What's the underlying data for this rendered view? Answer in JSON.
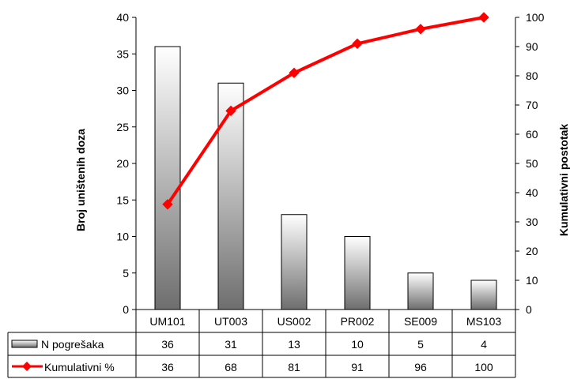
{
  "chart_data": {
    "type": "bar",
    "categories": [
      "UM101",
      "UT003",
      "US002",
      "PR002",
      "SE009",
      "MS103"
    ],
    "series": [
      {
        "name": "N pogrešaka",
        "type": "bar",
        "axis": "left",
        "values": [
          36,
          31,
          13,
          10,
          5,
          4
        ]
      },
      {
        "name": "Kumulativni %",
        "type": "line",
        "axis": "right",
        "values": [
          36,
          68,
          81,
          91,
          96,
          100
        ],
        "color": "#ff0000"
      }
    ],
    "ylabel": "Broj uništenih doza",
    "y2label": "Kumulativni postotak",
    "ylim": [
      0,
      40
    ],
    "y2lim": [
      0,
      100
    ],
    "yticks": [
      0,
      5,
      10,
      15,
      20,
      25,
      30,
      35,
      40
    ],
    "y2ticks": [
      0,
      10,
      20,
      30,
      40,
      50,
      60,
      70,
      80,
      90,
      100
    ],
    "grid": false,
    "data_table": true,
    "colors": {
      "bar_dark": "#6e6e6e",
      "bar_light": "#ffffff",
      "line": "#ff0000",
      "marker": "#ff0000"
    }
  }
}
